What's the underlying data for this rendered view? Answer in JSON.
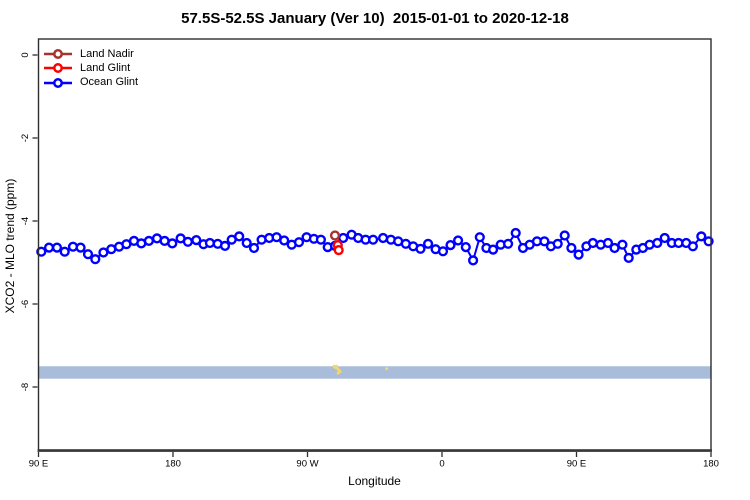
{
  "title": "57.5S-52.5S January (Ver 10)  2015-01-01 to 2020-12-18",
  "axes": {
    "xlabel": "Longitude",
    "ylabel": "XCO2 - MLO trend (ppm)"
  },
  "legend": [
    {
      "label": "Land Nadir",
      "color": "#a5332e"
    },
    {
      "label": "Land Glint",
      "color": "#ff0000"
    },
    {
      "label": "Ocean Glint",
      "color": "#0000ff"
    }
  ],
  "chart_data": {
    "type": "line",
    "title": "57.5S-52.5S January (Ver 10)  2015-01-01 to 2020-12-18",
    "xlabel": "Longitude",
    "ylabel": "XCO2 - MLO trend (ppm)",
    "x_axis": {
      "note": "longitude unwrapped eastward starting at 90E; 270=90W, 360=0, 450=90E",
      "range": [
        90,
        540
      ],
      "ticks": [
        90,
        180,
        270,
        360,
        450,
        540
      ],
      "tick_labels": [
        "90 E",
        "180",
        "90 W",
        "0",
        "90 E",
        "180"
      ]
    },
    "y_axis": {
      "range": [
        -9.5,
        0.4
      ],
      "ticks": [
        0,
        -2,
        -4,
        -6,
        -8
      ],
      "tick_labels": [
        "0",
        "-2",
        "-4",
        "-6",
        "-8"
      ]
    },
    "grid": false,
    "legend_position": "top-left-inside",
    "band": {
      "y_from": -7.5,
      "y_to": -7.8,
      "color": "#a9bddb"
    },
    "band_markers": {
      "color": "#f3d66f",
      "points": [
        [
          287.8,
          -7.5
        ],
        [
          288.6,
          -7.53
        ],
        [
          289.4,
          -7.5
        ],
        [
          290.2,
          -7.56
        ],
        [
          291.0,
          -7.6
        ],
        [
          291.8,
          -7.63
        ],
        [
          290.5,
          -7.67
        ],
        [
          323.0,
          -7.56
        ]
      ]
    },
    "series": [
      {
        "name": "Ocean Glint",
        "color": "#0000ff",
        "marker": "open-circle",
        "line": true,
        "points": [
          [
            91.9,
            -4.74
          ],
          [
            97.0,
            -4.64
          ],
          [
            102.4,
            -4.64
          ],
          [
            107.5,
            -4.74
          ],
          [
            113.1,
            -4.62
          ],
          [
            118.2,
            -4.64
          ],
          [
            123.1,
            -4.8
          ],
          [
            128.0,
            -4.92
          ],
          [
            133.4,
            -4.76
          ],
          [
            138.7,
            -4.68
          ],
          [
            143.9,
            -4.62
          ],
          [
            148.8,
            -4.56
          ],
          [
            153.9,
            -4.48
          ],
          [
            158.8,
            -4.54
          ],
          [
            163.9,
            -4.48
          ],
          [
            169.3,
            -4.42
          ],
          [
            174.4,
            -4.48
          ],
          [
            179.5,
            -4.54
          ],
          [
            185.1,
            -4.42
          ],
          [
            190.0,
            -4.5
          ],
          [
            195.6,
            -4.46
          ],
          [
            200.4,
            -4.56
          ],
          [
            204.7,
            -4.53
          ],
          [
            209.9,
            -4.55
          ],
          [
            214.8,
            -4.6
          ],
          [
            219.3,
            -4.45
          ],
          [
            224.3,
            -4.37
          ],
          [
            229.3,
            -4.53
          ],
          [
            234.2,
            -4.65
          ],
          [
            239.3,
            -4.45
          ],
          [
            244.4,
            -4.41
          ],
          [
            249.3,
            -4.39
          ],
          [
            254.4,
            -4.47
          ],
          [
            259.4,
            -4.57
          ],
          [
            264.3,
            -4.51
          ],
          [
            269.4,
            -4.39
          ],
          [
            274.3,
            -4.43
          ],
          [
            279.0,
            -4.45
          ],
          [
            283.5,
            -4.63
          ],
          [
            288.4,
            -4.6
          ],
          [
            293.9,
            -4.41
          ],
          [
            299.5,
            -4.33
          ],
          [
            303.9,
            -4.41
          ],
          [
            308.9,
            -4.45
          ],
          [
            313.9,
            -4.45
          ],
          [
            320.6,
            -4.41
          ],
          [
            325.8,
            -4.45
          ],
          [
            330.7,
            -4.49
          ],
          [
            335.8,
            -4.55
          ],
          [
            340.7,
            -4.61
          ],
          [
            345.6,
            -4.67
          ],
          [
            350.7,
            -4.55
          ],
          [
            355.7,
            -4.68
          ],
          [
            360.7,
            -4.73
          ],
          [
            365.7,
            -4.58
          ],
          [
            370.8,
            -4.47
          ],
          [
            375.9,
            -4.63
          ],
          [
            380.8,
            -4.95
          ],
          [
            385.3,
            -4.39
          ],
          [
            389.7,
            -4.65
          ],
          [
            394.2,
            -4.69
          ],
          [
            399.3,
            -4.57
          ],
          [
            404.2,
            -4.55
          ],
          [
            409.3,
            -4.29
          ],
          [
            414.2,
            -4.65
          ],
          [
            418.7,
            -4.57
          ],
          [
            423.6,
            -4.49
          ],
          [
            428.5,
            -4.49
          ],
          [
            432.9,
            -4.61
          ],
          [
            437.4,
            -4.55
          ],
          [
            442.1,
            -4.35
          ],
          [
            446.6,
            -4.65
          ],
          [
            451.4,
            -4.81
          ],
          [
            456.6,
            -4.61
          ],
          [
            461.0,
            -4.53
          ],
          [
            466.2,
            -4.57
          ],
          [
            471.1,
            -4.53
          ],
          [
            475.5,
            -4.65
          ],
          [
            480.7,
            -4.57
          ],
          [
            484.9,
            -4.89
          ],
          [
            490.0,
            -4.69
          ],
          [
            494.4,
            -4.65
          ],
          [
            498.9,
            -4.57
          ],
          [
            504.1,
            -4.53
          ],
          [
            509.0,
            -4.41
          ],
          [
            513.8,
            -4.53
          ],
          [
            518.3,
            -4.53
          ],
          [
            523.4,
            -4.53
          ],
          [
            527.9,
            -4.61
          ],
          [
            533.5,
            -4.37
          ],
          [
            538.4,
            -4.49
          ]
        ]
      },
      {
        "name": "Land Glint",
        "color": "#ff0000",
        "marker": "open-circle",
        "line": false,
        "points": [
          [
            290.3,
            -4.58
          ],
          [
            290.9,
            -4.7
          ]
        ]
      },
      {
        "name": "Land Nadir",
        "color": "#a5332e",
        "marker": "open-circle",
        "line": false,
        "points": [
          [
            288.4,
            -4.35
          ]
        ]
      }
    ]
  }
}
